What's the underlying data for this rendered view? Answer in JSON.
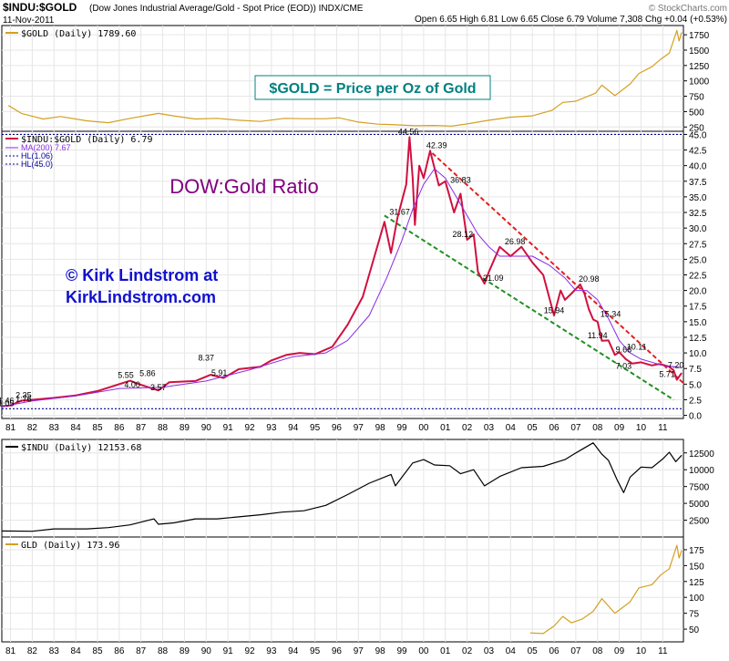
{
  "header": {
    "symbol": "$INDU:$GOLD",
    "description": "(Dow Jones Industrial Average/Gold - Spot Price (EOD)) INDX/CME",
    "date": "11-Nov-2011",
    "watermark": "© StockCharts.com",
    "ohlc": "Open 6.65  High 6.81  Low 6.65  Close 6.79  Volume 7,308  Chg +0.04 (+0.53%)"
  },
  "colors": {
    "gold": "#d4a020",
    "ratio": "#d01040",
    "ma": "#8a2be2",
    "black": "#000000",
    "red_trend": "#e02020",
    "green_trend": "#209020",
    "hl": "#000090",
    "title_purple": "#800080",
    "blue_text": "#1010d0",
    "teal": "#008080"
  },
  "annotations": {
    "gold_caption": "$GOLD = Price per Oz of Gold",
    "ratio_title": "DOW:Gold Ratio",
    "copyright_line1": "© Kirk Lindstrom at",
    "copyright_line2": "KirkLindstrom.com"
  },
  "chart_data": [
    {
      "type": "line",
      "legend": "$GOLD (Daily) 1789.60",
      "y_ticks": [
        250,
        500,
        750,
        1000,
        1250,
        1500,
        1750
      ],
      "ylim": [
        180,
        1900
      ],
      "series": [
        {
          "x": [
            1980.9,
            1981.5,
            1982.5,
            1983.3,
            1984.5,
            1985.5,
            1986.5,
            1987.8,
            1988.5,
            1989.5,
            1990.5,
            1991.5,
            1992.5,
            1993.6,
            1994.5,
            1995.5,
            1996.1,
            1997.0,
            1997.9,
            1998.5,
            1999.6,
            2000.5,
            2001.3,
            2002.0,
            2003.0,
            2004.0,
            2005.0,
            2005.9,
            2006.4,
            2007.0,
            2007.9,
            2008.2,
            2008.8,
            2009.5,
            2009.9,
            2010.5,
            2010.9,
            2011.3,
            2011.65,
            2011.75,
            2011.87
          ],
          "y": [
            600,
            470,
            380,
            420,
            350,
            320,
            390,
            470,
            430,
            380,
            390,
            360,
            340,
            390,
            385,
            385,
            400,
            330,
            295,
            290,
            270,
            275,
            265,
            300,
            360,
            410,
            430,
            520,
            650,
            670,
            800,
            930,
            760,
            950,
            1120,
            1230,
            1350,
            1450,
            1820,
            1650,
            1790
          ]
        }
      ]
    },
    {
      "type": "line",
      "legend": "$INDU:$GOLD (Daily) 6.79",
      "ma_legend": "MA(200) 7.67",
      "hl_low_legend": "HL(1.06)",
      "hl_high_legend": "HL(45.0)",
      "hl_low": 1.06,
      "hl_high": 45.0,
      "x_ticks": [
        "81",
        "82",
        "83",
        "84",
        "85",
        "86",
        "87",
        "88",
        "89",
        "90",
        "91",
        "92",
        "93",
        "94",
        "95",
        "96",
        "97",
        "98",
        "99",
        "00",
        "01",
        "02",
        "03",
        "04",
        "05",
        "06",
        "07",
        "08",
        "09",
        "10",
        "11"
      ],
      "y_ticks": [
        0.0,
        2.5,
        5.0,
        7.5,
        10.0,
        12.5,
        15.0,
        17.5,
        20.0,
        22.5,
        25.0,
        27.5,
        30.0,
        32.5,
        35.0,
        37.5,
        40.0,
        42.5,
        45.0
      ],
      "ylim": [
        -0.5,
        45.5
      ],
      "series": [
        {
          "name": "$INDU:$GOLD",
          "x": [
            1980.6,
            1981.0,
            1981.5,
            1982.0,
            1983.0,
            1984.0,
            1985.0,
            1986.5,
            1986.9,
            1987.8,
            1988.3,
            1989.5,
            1990.2,
            1990.8,
            1991.5,
            1992.5,
            1993.0,
            1993.7,
            1994.3,
            1995.0,
            1995.8,
            1996.5,
            1997.2,
            1997.7,
            1998.2,
            1998.5,
            1998.8,
            1999.2,
            1999.35,
            1999.5,
            1999.6,
            1999.8,
            2000.0,
            2000.3,
            2000.7,
            2001.0,
            2001.4,
            2001.7,
            2002.0,
            2002.3,
            2002.5,
            2002.8,
            2003.0,
            2003.5,
            2004.0,
            2004.5,
            2005.0,
            2005.5,
            2006.0,
            2006.3,
            2006.5,
            2006.8,
            2007.2,
            2007.4,
            2007.6,
            2007.8,
            2008.0,
            2008.2,
            2008.5,
            2008.8,
            2009.0,
            2009.3,
            2009.6,
            2010.0,
            2010.5,
            2010.8,
            2011.0,
            2011.3,
            2011.5,
            2011.65,
            2011.87
          ],
          "y": [
            1.46,
            1.6,
            2.35,
            2.5,
            2.8,
            3.2,
            3.9,
            5.55,
            5.0,
            4.0,
            5.3,
            5.5,
            6.5,
            6.0,
            7.4,
            7.8,
            8.8,
            9.7,
            10.0,
            9.8,
            11.0,
            14.5,
            19.0,
            25.0,
            31.0,
            26.0,
            31.67,
            37.0,
            44.56,
            38.0,
            30.5,
            40.0,
            38.0,
            42.39,
            36.83,
            37.5,
            32.5,
            35.5,
            28.12,
            29.0,
            23.0,
            21.09,
            23.0,
            26.98,
            25.5,
            27.0,
            24.5,
            22.5,
            16.0,
            20.0,
            18.5,
            19.5,
            20.98,
            19.5,
            17.0,
            15.34,
            15.0,
            11.94,
            12.0,
            9.68,
            10.11,
            9.0,
            8.3,
            8.5,
            8.0,
            8.2,
            8.1,
            7.8,
            7.2,
            5.71,
            6.79
          ]
        },
        {
          "name": "MA(200)",
          "x": [
            1980.6,
            1982.0,
            1984.0,
            1986.0,
            1988.0,
            1990.0,
            1992.0,
            1994.0,
            1995.5,
            1996.5,
            1997.5,
            1998.3,
            1999.0,
            1999.5,
            2000.0,
            2000.5,
            2001.0,
            2001.5,
            2002.0,
            2002.5,
            2003.0,
            2003.5,
            2004.0,
            2005.0,
            2005.8,
            2006.5,
            2007.0,
            2007.5,
            2008.0,
            2008.5,
            2009.0,
            2009.5,
            2010.0,
            2011.0,
            2011.87
          ],
          "y": [
            1.4,
            2.3,
            3.1,
            4.3,
            4.5,
            5.5,
            7.3,
            9.4,
            10.0,
            12.0,
            16.0,
            22.0,
            28.0,
            33.0,
            37.0,
            39.5,
            38.0,
            35.0,
            32.0,
            29.0,
            27.0,
            25.5,
            25.5,
            25.5,
            24.0,
            22.0,
            20.0,
            20.0,
            18.5,
            15.5,
            12.0,
            10.0,
            9.0,
            8.0,
            7.67
          ]
        }
      ],
      "trendlines": [
        {
          "name": "resistance",
          "x": [
            2000.4,
            2012.0
          ],
          "y": [
            42.0,
            5.0
          ]
        },
        {
          "name": "support",
          "x": [
            1998.2,
            2011.5
          ],
          "y": [
            32.0,
            2.5
          ]
        }
      ],
      "labels": [
        {
          "text": "1.46",
          "x": 1980.8,
          "y": 1.46
        },
        {
          "text": "1.05",
          "x": 1980.8,
          "y": 1.05
        },
        {
          "text": "2.35",
          "x": 1981.6,
          "y": 2.35
        },
        {
          "text": "1.76",
          "x": 1981.6,
          "y": 1.76
        },
        {
          "text": "5.55",
          "x": 1986.3,
          "y": 5.55
        },
        {
          "text": "5.86",
          "x": 1987.3,
          "y": 5.86
        },
        {
          "text": "4.00",
          "x": 1986.6,
          "y": 4.0
        },
        {
          "text": "3.57",
          "x": 1987.8,
          "y": 3.57
        },
        {
          "text": "8.37",
          "x": 1990.0,
          "y": 8.37
        },
        {
          "text": "5.91",
          "x": 1990.6,
          "y": 5.91
        },
        {
          "text": "44.56",
          "x": 1999.3,
          "y": 44.56
        },
        {
          "text": "42.39",
          "x": 2000.6,
          "y": 42.39
        },
        {
          "text": "36.83",
          "x": 2001.7,
          "y": 36.83
        },
        {
          "text": "31.67",
          "x": 1998.9,
          "y": 31.67
        },
        {
          "text": "28.12",
          "x": 2001.8,
          "y": 28.12
        },
        {
          "text": "26.98",
          "x": 2004.2,
          "y": 26.98
        },
        {
          "text": "21.09",
          "x": 2003.2,
          "y": 21.09
        },
        {
          "text": "20.98",
          "x": 2007.6,
          "y": 20.98
        },
        {
          "text": "15.94",
          "x": 2006.0,
          "y": 15.94
        },
        {
          "text": "15.34",
          "x": 2008.6,
          "y": 15.34
        },
        {
          "text": "11.94",
          "x": 2008.0,
          "y": 11.94
        },
        {
          "text": "10.11",
          "x": 2009.8,
          "y": 10.11
        },
        {
          "text": "9.68",
          "x": 2009.2,
          "y": 9.68
        },
        {
          "text": "7.20",
          "x": 2011.6,
          "y": 7.2
        },
        {
          "text": "7.03",
          "x": 2009.2,
          "y": 7.03
        },
        {
          "text": "5.71",
          "x": 2011.2,
          "y": 5.71
        }
      ]
    },
    {
      "type": "line",
      "legend": "$INDU (Daily) 12153.68",
      "y_ticks": [
        2500,
        5000,
        7500,
        10000,
        12500
      ],
      "ylim": [
        0,
        14500
      ],
      "series": [
        {
          "x": [
            1980.6,
            1982.0,
            1983.0,
            1984.5,
            1985.5,
            1986.5,
            1987.6,
            1987.8,
            1988.5,
            1989.5,
            1990.5,
            1991.5,
            1992.5,
            1993.5,
            1994.5,
            1995.5,
            1996.5,
            1997.5,
            1998.5,
            1998.7,
            1999.5,
            2000.0,
            2000.5,
            2001.2,
            2001.7,
            2002.3,
            2002.8,
            2003.5,
            2004.5,
            2005.5,
            2006.5,
            2007.0,
            2007.8,
            2008.2,
            2008.5,
            2008.9,
            2009.2,
            2009.5,
            2010.0,
            2010.5,
            2011.0,
            2011.3,
            2011.6,
            2011.87
          ],
          "y": [
            900,
            850,
            1200,
            1200,
            1400,
            1800,
            2700,
            1900,
            2100,
            2700,
            2700,
            3000,
            3300,
            3700,
            3900,
            4700,
            6300,
            8000,
            9300,
            7600,
            11000,
            11500,
            10700,
            10600,
            9400,
            10000,
            7600,
            9000,
            10300,
            10500,
            11500,
            12500,
            14000,
            12300,
            11400,
            8500,
            6600,
            8900,
            10400,
            10300,
            11600,
            12600,
            11200,
            12153
          ]
        }
      ]
    },
    {
      "type": "line",
      "legend": "GLD (Daily) 173.96",
      "y_ticks": [
        50,
        75,
        100,
        125,
        150,
        175
      ],
      "ylim": [
        30,
        195
      ],
      "series": [
        {
          "x": [
            2004.9,
            2005.5,
            2006.0,
            2006.4,
            2006.8,
            2007.3,
            2007.8,
            2008.2,
            2008.8,
            2009.5,
            2009.9,
            2010.5,
            2010.9,
            2011.3,
            2011.65,
            2011.75,
            2011.87
          ],
          "y": [
            44,
            43,
            55,
            70,
            60,
            66,
            78,
            98,
            75,
            93,
            115,
            120,
            135,
            145,
            182,
            162,
            173.96
          ]
        }
      ]
    }
  ]
}
